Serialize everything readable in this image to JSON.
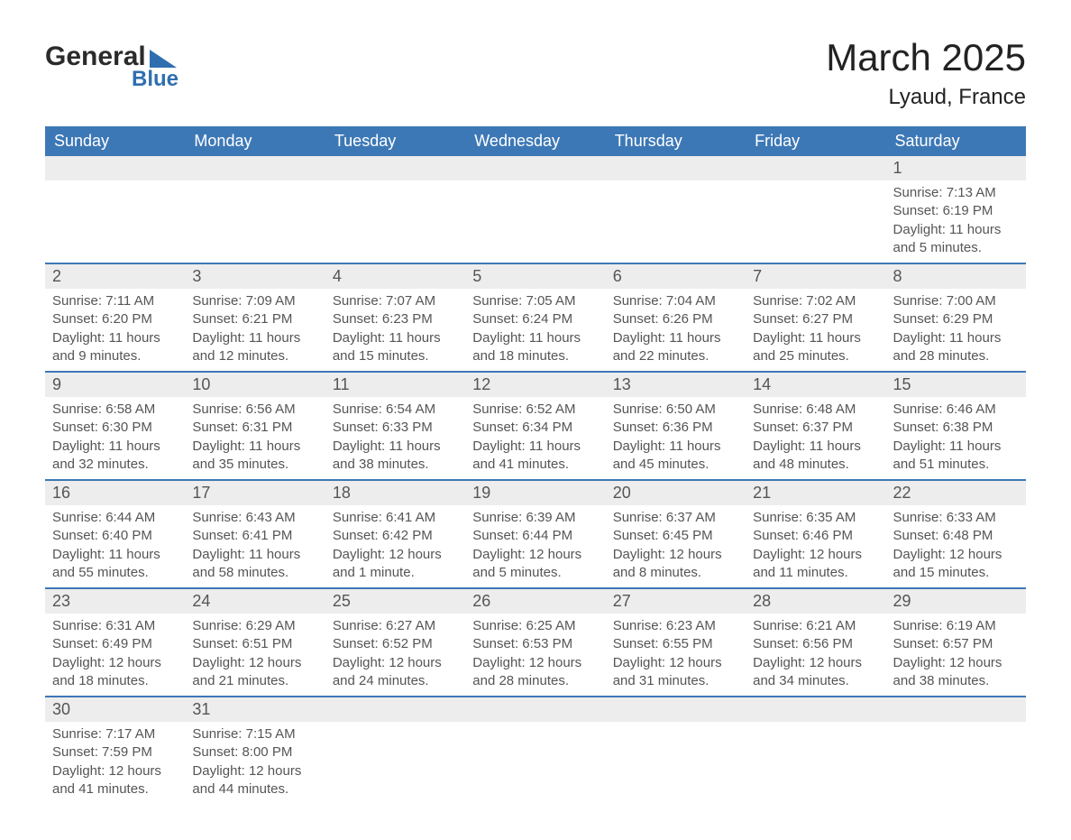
{
  "logo": {
    "text_main": "General",
    "text_sub": "Blue",
    "brand_color": "#2f6fb0"
  },
  "title": "March 2025",
  "subtitle": "Lyaud, France",
  "colors": {
    "header_bg": "#3d78b6",
    "header_text": "#ffffff",
    "row_sep": "#3d78b6",
    "daynum_bg": "#ededed",
    "text": "#555555",
    "background": "#ffffff"
  },
  "typography": {
    "title_fontsize": 42,
    "subtitle_fontsize": 24,
    "header_fontsize": 18,
    "body_fontsize": 15
  },
  "weekday_headers": [
    "Sunday",
    "Monday",
    "Tuesday",
    "Wednesday",
    "Thursday",
    "Friday",
    "Saturday"
  ],
  "field_labels": {
    "sunrise": "Sunrise",
    "sunset": "Sunset",
    "daylight": "Daylight"
  },
  "weeks": [
    [
      null,
      null,
      null,
      null,
      null,
      null,
      {
        "day": 1,
        "sunrise": "7:13 AM",
        "sunset": "6:19 PM",
        "daylight": "11 hours and 5 minutes."
      }
    ],
    [
      {
        "day": 2,
        "sunrise": "7:11 AM",
        "sunset": "6:20 PM",
        "daylight": "11 hours and 9 minutes."
      },
      {
        "day": 3,
        "sunrise": "7:09 AM",
        "sunset": "6:21 PM",
        "daylight": "11 hours and 12 minutes."
      },
      {
        "day": 4,
        "sunrise": "7:07 AM",
        "sunset": "6:23 PM",
        "daylight": "11 hours and 15 minutes."
      },
      {
        "day": 5,
        "sunrise": "7:05 AM",
        "sunset": "6:24 PM",
        "daylight": "11 hours and 18 minutes."
      },
      {
        "day": 6,
        "sunrise": "7:04 AM",
        "sunset": "6:26 PM",
        "daylight": "11 hours and 22 minutes."
      },
      {
        "day": 7,
        "sunrise": "7:02 AM",
        "sunset": "6:27 PM",
        "daylight": "11 hours and 25 minutes."
      },
      {
        "day": 8,
        "sunrise": "7:00 AM",
        "sunset": "6:29 PM",
        "daylight": "11 hours and 28 minutes."
      }
    ],
    [
      {
        "day": 9,
        "sunrise": "6:58 AM",
        "sunset": "6:30 PM",
        "daylight": "11 hours and 32 minutes."
      },
      {
        "day": 10,
        "sunrise": "6:56 AM",
        "sunset": "6:31 PM",
        "daylight": "11 hours and 35 minutes."
      },
      {
        "day": 11,
        "sunrise": "6:54 AM",
        "sunset": "6:33 PM",
        "daylight": "11 hours and 38 minutes."
      },
      {
        "day": 12,
        "sunrise": "6:52 AM",
        "sunset": "6:34 PM",
        "daylight": "11 hours and 41 minutes."
      },
      {
        "day": 13,
        "sunrise": "6:50 AM",
        "sunset": "6:36 PM",
        "daylight": "11 hours and 45 minutes."
      },
      {
        "day": 14,
        "sunrise": "6:48 AM",
        "sunset": "6:37 PM",
        "daylight": "11 hours and 48 minutes."
      },
      {
        "day": 15,
        "sunrise": "6:46 AM",
        "sunset": "6:38 PM",
        "daylight": "11 hours and 51 minutes."
      }
    ],
    [
      {
        "day": 16,
        "sunrise": "6:44 AM",
        "sunset": "6:40 PM",
        "daylight": "11 hours and 55 minutes."
      },
      {
        "day": 17,
        "sunrise": "6:43 AM",
        "sunset": "6:41 PM",
        "daylight": "11 hours and 58 minutes."
      },
      {
        "day": 18,
        "sunrise": "6:41 AM",
        "sunset": "6:42 PM",
        "daylight": "12 hours and 1 minute."
      },
      {
        "day": 19,
        "sunrise": "6:39 AM",
        "sunset": "6:44 PM",
        "daylight": "12 hours and 5 minutes."
      },
      {
        "day": 20,
        "sunrise": "6:37 AM",
        "sunset": "6:45 PM",
        "daylight": "12 hours and 8 minutes."
      },
      {
        "day": 21,
        "sunrise": "6:35 AM",
        "sunset": "6:46 PM",
        "daylight": "12 hours and 11 minutes."
      },
      {
        "day": 22,
        "sunrise": "6:33 AM",
        "sunset": "6:48 PM",
        "daylight": "12 hours and 15 minutes."
      }
    ],
    [
      {
        "day": 23,
        "sunrise": "6:31 AM",
        "sunset": "6:49 PM",
        "daylight": "12 hours and 18 minutes."
      },
      {
        "day": 24,
        "sunrise": "6:29 AM",
        "sunset": "6:51 PM",
        "daylight": "12 hours and 21 minutes."
      },
      {
        "day": 25,
        "sunrise": "6:27 AM",
        "sunset": "6:52 PM",
        "daylight": "12 hours and 24 minutes."
      },
      {
        "day": 26,
        "sunrise": "6:25 AM",
        "sunset": "6:53 PM",
        "daylight": "12 hours and 28 minutes."
      },
      {
        "day": 27,
        "sunrise": "6:23 AM",
        "sunset": "6:55 PM",
        "daylight": "12 hours and 31 minutes."
      },
      {
        "day": 28,
        "sunrise": "6:21 AM",
        "sunset": "6:56 PM",
        "daylight": "12 hours and 34 minutes."
      },
      {
        "day": 29,
        "sunrise": "6:19 AM",
        "sunset": "6:57 PM",
        "daylight": "12 hours and 38 minutes."
      }
    ],
    [
      {
        "day": 30,
        "sunrise": "7:17 AM",
        "sunset": "7:59 PM",
        "daylight": "12 hours and 41 minutes."
      },
      {
        "day": 31,
        "sunrise": "7:15 AM",
        "sunset": "8:00 PM",
        "daylight": "12 hours and 44 minutes."
      },
      null,
      null,
      null,
      null,
      null
    ]
  ]
}
